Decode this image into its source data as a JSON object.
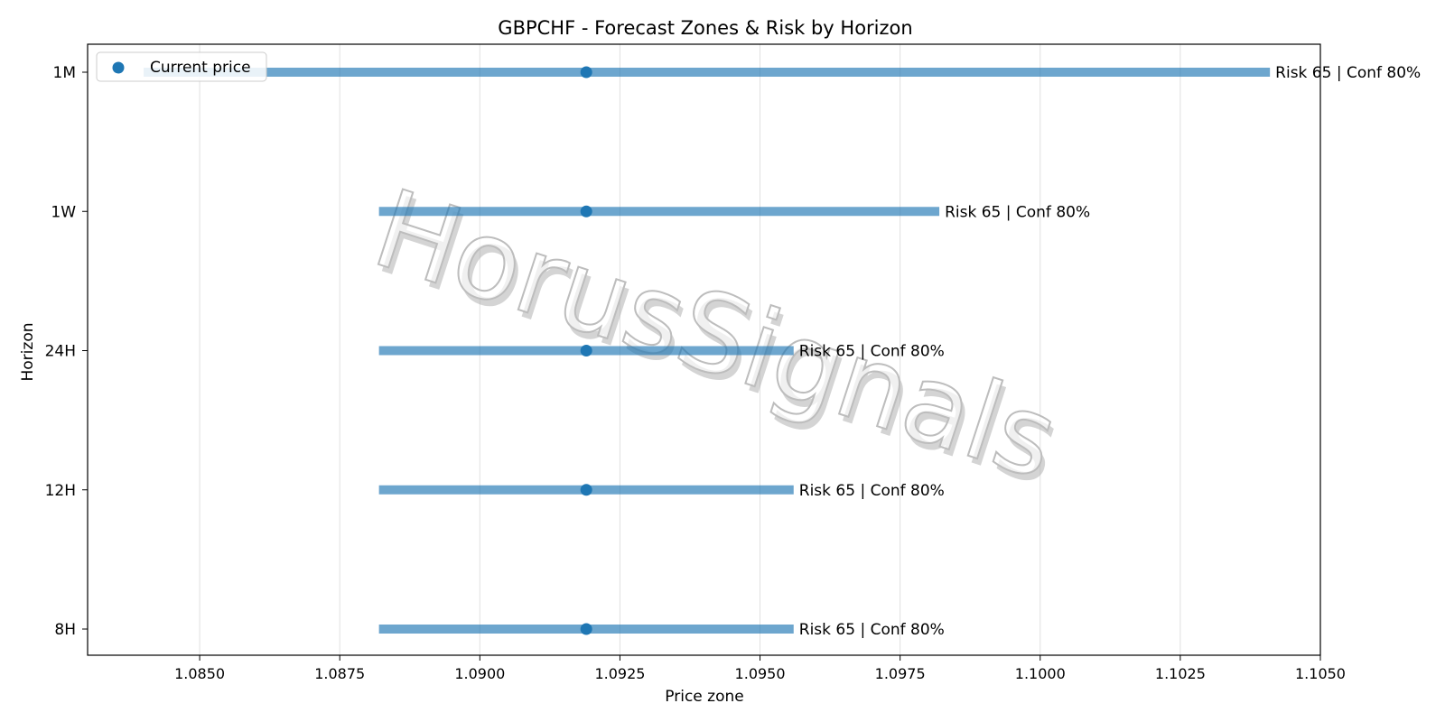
{
  "chart_data": {
    "type": "range",
    "title": "GBPCHF - Forecast Zones & Risk by Horizon",
    "xlabel": "Price zone",
    "ylabel": "Horizon",
    "xlim": [
      1.083,
      1.105
    ],
    "x_ticks": [
      "1.0850",
      "1.0875",
      "1.0900",
      "1.0925",
      "1.0950",
      "1.0975",
      "1.1000",
      "1.1025",
      "1.1050"
    ],
    "grid": "vertical",
    "legend": {
      "position": "top-left",
      "label": "Current price"
    },
    "watermark": "HorusSignals",
    "colors": {
      "zone": "#1f77b4",
      "point": "#1f77b4",
      "grid": "#e0e0e0",
      "watermark": "#c8c8c8"
    },
    "series": [
      {
        "horizon": "1M",
        "low": 1.084,
        "high": 1.1041,
        "current": 1.0919,
        "annotation": "Risk 65 | Conf 80%"
      },
      {
        "horizon": "1W",
        "low": 1.0882,
        "high": 1.0982,
        "current": 1.0919,
        "annotation": "Risk 65 | Conf 80%"
      },
      {
        "horizon": "24H",
        "low": 1.0882,
        "high": 1.0956,
        "current": 1.0919,
        "annotation": "Risk 65 | Conf 80%"
      },
      {
        "horizon": "12H",
        "low": 1.0882,
        "high": 1.0956,
        "current": 1.0919,
        "annotation": "Risk 65 | Conf 80%"
      },
      {
        "horizon": "8H",
        "low": 1.0882,
        "high": 1.0956,
        "current": 1.0919,
        "annotation": "Risk 65 | Conf 80%"
      }
    ]
  }
}
